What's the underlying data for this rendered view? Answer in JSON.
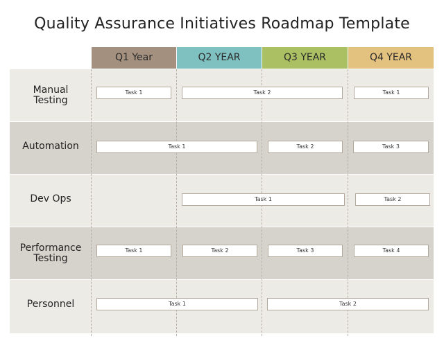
{
  "title": "Quality Assurance Initiatives Roadmap Template",
  "quarters": [
    {
      "label": "Q1 Year",
      "color": "#a4907e"
    },
    {
      "label": "Q2 YEAR",
      "color": "#7fc1c0"
    },
    {
      "label": "Q3 YEAR",
      "color": "#abc063"
    },
    {
      "label": "Q4 YEAR",
      "color": "#e3c17f"
    }
  ],
  "rows": [
    {
      "label": "Manual Testing",
      "tasks": [
        "Task 1",
        "Task 2",
        "Task 1"
      ]
    },
    {
      "label": "Automation",
      "tasks": [
        "Task 1",
        "Task 2",
        "Task 3"
      ]
    },
    {
      "label": "Dev Ops",
      "tasks": [
        "Task 1",
        "Task 2"
      ]
    },
    {
      "label": "Performance Testing",
      "tasks": [
        "Task 1",
        "Task 2",
        "Task 3",
        "Task 4"
      ]
    },
    {
      "label": "Personnel",
      "tasks": [
        "Task 1",
        "Task 2"
      ]
    }
  ]
}
